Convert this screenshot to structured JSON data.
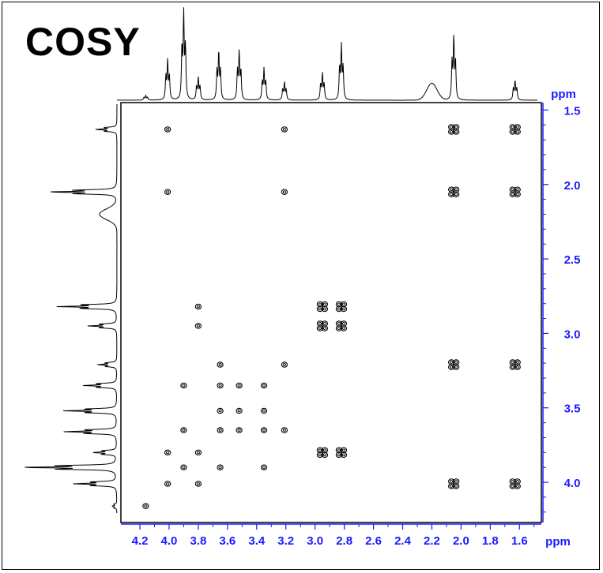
{
  "title": "COSY",
  "colors": {
    "axis": "#1a1aff",
    "trace": "#000000",
    "frame": "#000000"
  },
  "chart_data": {
    "type": "heatmap",
    "title": "COSY",
    "xlabel": "ppm",
    "ylabel": "ppm",
    "x_ticks": [
      "4.2",
      "4.0",
      "3.8",
      "3.6",
      "3.4",
      "3.2",
      "3.0",
      "2.8",
      "2.6",
      "2.4",
      "2.2",
      "2.0",
      "1.8",
      "1.6"
    ],
    "y_ticks": [
      "1.5",
      "2.0",
      "2.5",
      "3.0",
      "3.5",
      "4.0"
    ],
    "xlim": [
      4.33,
      1.45
    ],
    "ylim": [
      1.45,
      4.27
    ],
    "shifts": [
      4.01,
      3.9,
      3.8,
      3.65,
      3.52,
      3.35,
      3.21,
      2.95,
      2.82,
      2.05,
      1.63
    ],
    "peaks": [
      {
        "x": 4.01,
        "y": 1.63
      },
      {
        "x": 3.21,
        "y": 1.63
      },
      {
        "x": 2.05,
        "y": 1.63
      },
      {
        "x": 1.63,
        "y": 1.63
      },
      {
        "x": 4.01,
        "y": 2.05
      },
      {
        "x": 3.21,
        "y": 2.05
      },
      {
        "x": 2.05,
        "y": 2.05
      },
      {
        "x": 1.63,
        "y": 2.05
      },
      {
        "x": 3.8,
        "y": 2.82
      },
      {
        "x": 2.95,
        "y": 2.82
      },
      {
        "x": 2.82,
        "y": 2.82
      },
      {
        "x": 3.8,
        "y": 2.95
      },
      {
        "x": 2.95,
        "y": 2.95
      },
      {
        "x": 2.82,
        "y": 2.95
      },
      {
        "x": 3.65,
        "y": 3.21
      },
      {
        "x": 3.21,
        "y": 3.21
      },
      {
        "x": 2.05,
        "y": 3.21
      },
      {
        "x": 1.63,
        "y": 3.21
      },
      {
        "x": 3.9,
        "y": 3.35
      },
      {
        "x": 3.65,
        "y": 3.35
      },
      {
        "x": 3.52,
        "y": 3.35
      },
      {
        "x": 3.35,
        "y": 3.35
      },
      {
        "x": 3.65,
        "y": 3.52
      },
      {
        "x": 3.52,
        "y": 3.52
      },
      {
        "x": 3.35,
        "y": 3.52
      },
      {
        "x": 3.9,
        "y": 3.65
      },
      {
        "x": 3.65,
        "y": 3.65
      },
      {
        "x": 3.52,
        "y": 3.65
      },
      {
        "x": 3.35,
        "y": 3.65
      },
      {
        "x": 3.21,
        "y": 3.65
      },
      {
        "x": 4.01,
        "y": 3.8
      },
      {
        "x": 3.8,
        "y": 3.8
      },
      {
        "x": 2.95,
        "y": 3.8
      },
      {
        "x": 2.82,
        "y": 3.8
      },
      {
        "x": 3.9,
        "y": 3.9
      },
      {
        "x": 3.65,
        "y": 3.9
      },
      {
        "x": 3.35,
        "y": 3.9
      },
      {
        "x": 4.01,
        "y": 4.01
      },
      {
        "x": 3.8,
        "y": 4.01
      },
      {
        "x": 2.05,
        "y": 4.01
      },
      {
        "x": 1.63,
        "y": 4.01
      },
      {
        "x": 4.16,
        "y": 4.16
      }
    ],
    "projection_peaks": [
      {
        "ppm": 4.16,
        "height": 0.05
      },
      {
        "ppm": 4.01,
        "height": 0.45
      },
      {
        "ppm": 3.9,
        "height": 1.0
      },
      {
        "ppm": 3.8,
        "height": 0.25
      },
      {
        "ppm": 3.66,
        "height": 0.55
      },
      {
        "ppm": 3.52,
        "height": 0.55
      },
      {
        "ppm": 3.35,
        "height": 0.35
      },
      {
        "ppm": 3.21,
        "height": 0.2
      },
      {
        "ppm": 2.95,
        "height": 0.3
      },
      {
        "ppm": 2.82,
        "height": 0.62
      },
      {
        "ppm": 2.2,
        "height": 0.2
      },
      {
        "ppm": 2.05,
        "height": 0.72
      },
      {
        "ppm": 1.63,
        "height": 0.22
      }
    ]
  }
}
